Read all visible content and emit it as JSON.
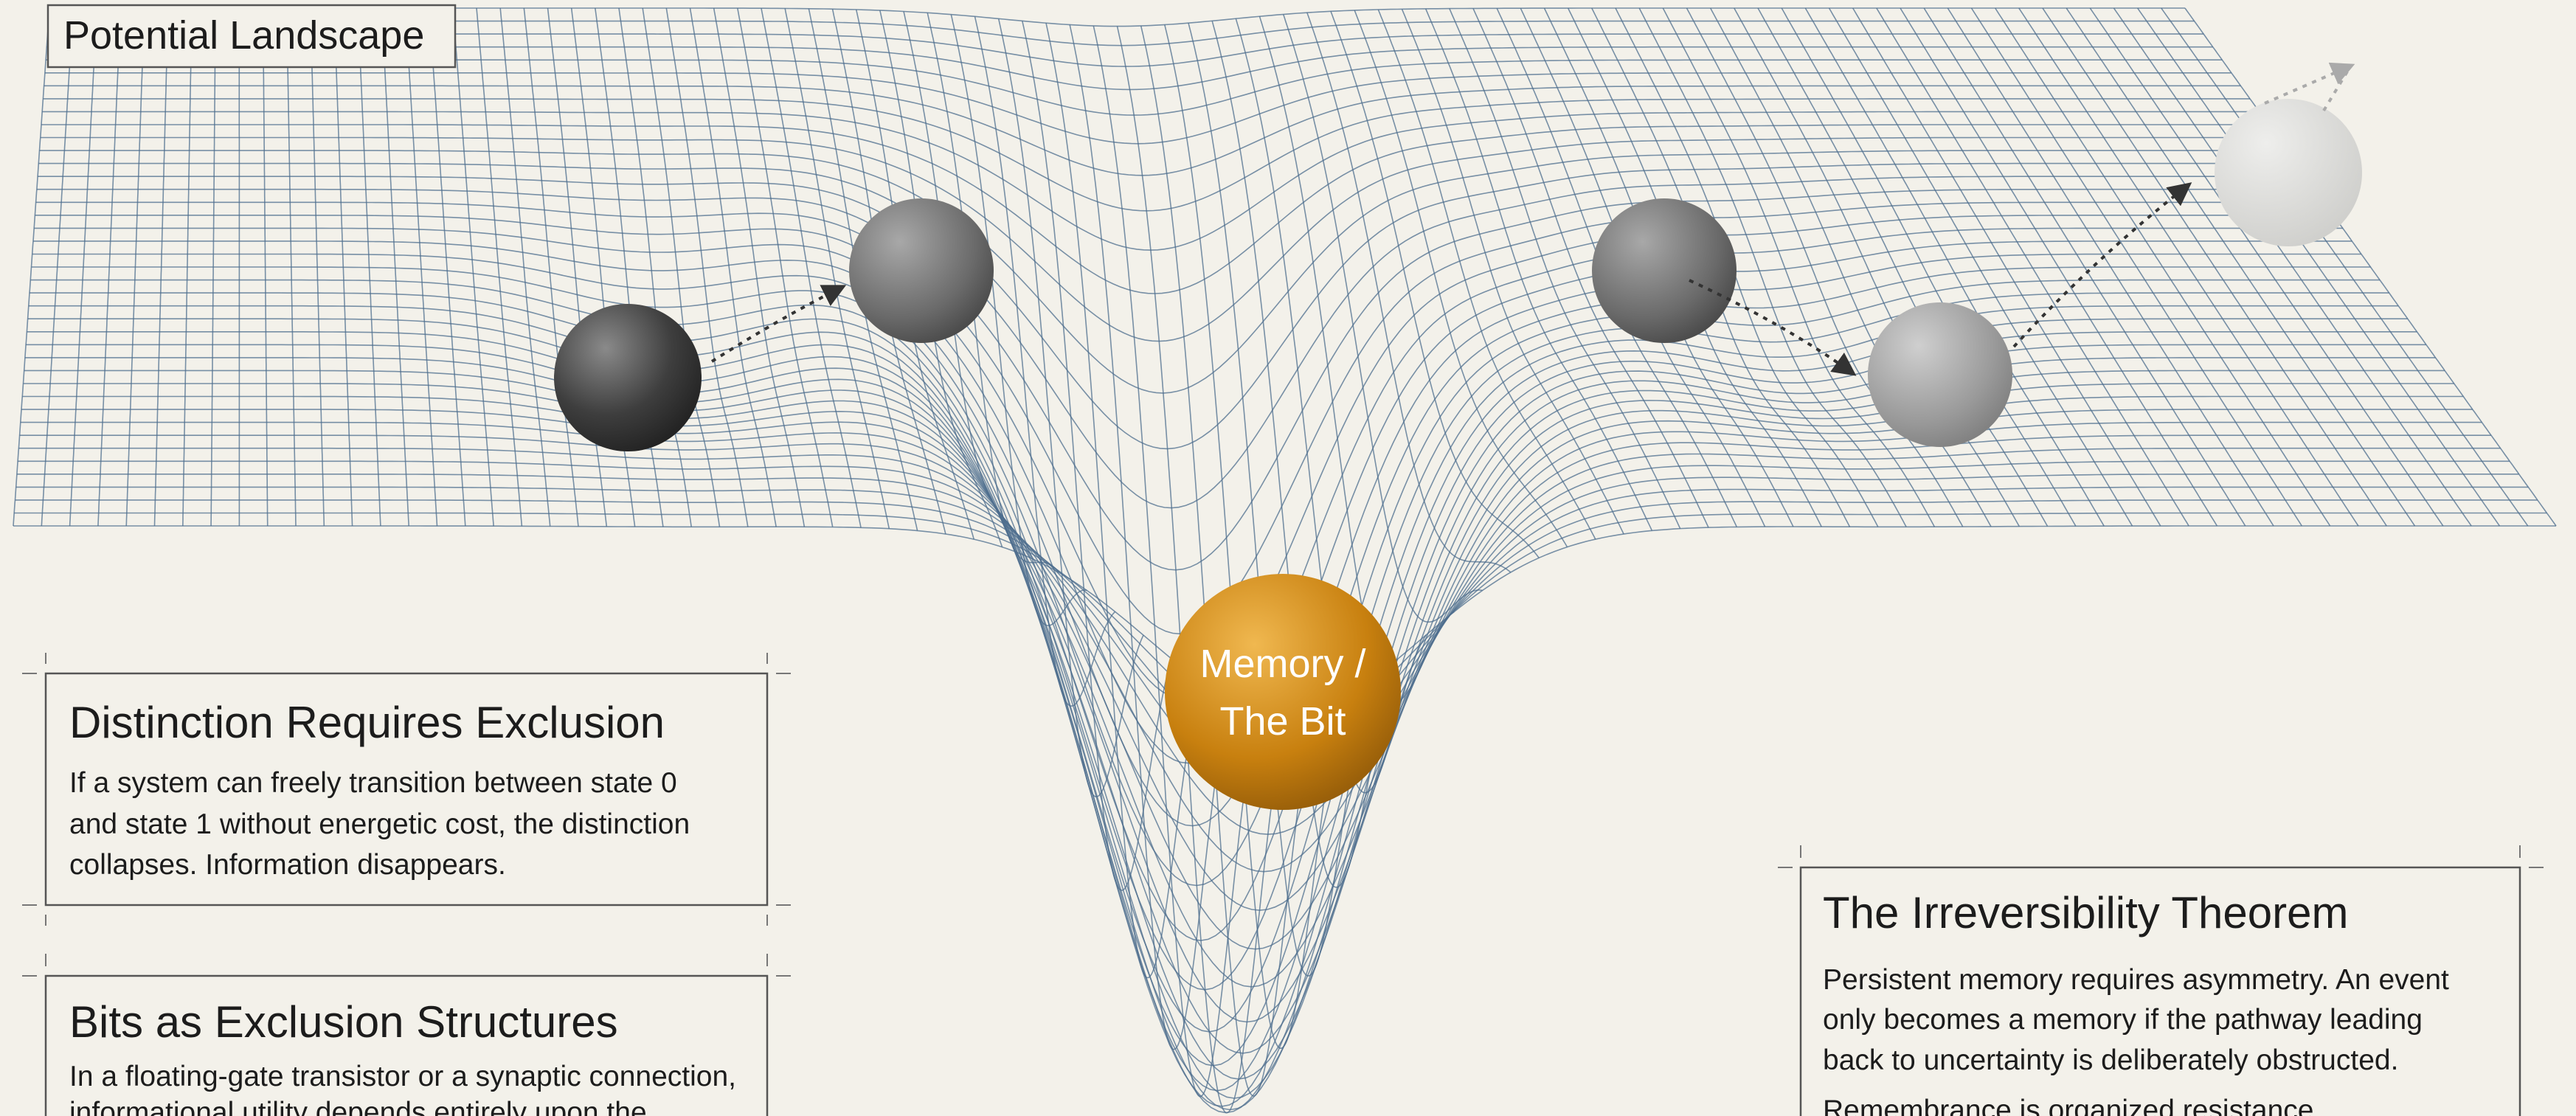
{
  "title": "Potential Landscape",
  "ball_label": [
    "Memory /",
    "The Bit"
  ],
  "panels": [
    {
      "title": "Distinction Requires Exclusion",
      "body": [
        "If a system can freely transition between state 0",
        "and state 1 without energetic cost, the distinction",
        "collapses. Information disappears."
      ]
    },
    {
      "title": "Bits as Exclusion Structures",
      "body": [
        "In a floating-gate transistor or a synaptic connection,",
        "informational utility depends entirely upon the"
      ]
    },
    {
      "title": "The Irreversibility Theorem",
      "body": [
        "Persistent memory requires asymmetry. An event",
        "only becomes a memory if the pathway leading",
        "back to uncertainty is deliberately obstructed.",
        "Remembrance is organized resistance."
      ]
    }
  ]
}
